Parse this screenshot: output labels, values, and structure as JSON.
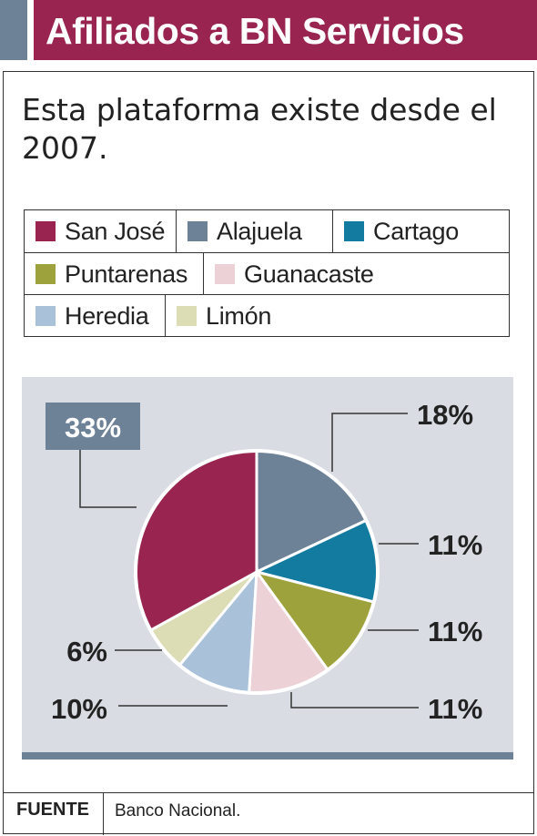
{
  "header": {
    "title": "Afiliados a BN Servicios"
  },
  "subtitle": "Esta plataforma existe desde el 2007.",
  "chart_data": {
    "type": "pie",
    "categories": [
      "San José",
      "Alajuela",
      "Cartago",
      "Puntarenas",
      "Guanacaste",
      "Heredia",
      "Limón"
    ],
    "values": [
      33,
      18,
      11,
      11,
      11,
      10,
      6
    ],
    "value_labels": [
      "33%",
      "18%",
      "11%",
      "11%",
      "11%",
      "10%",
      "6%"
    ],
    "colors": [
      "#98244f",
      "#6d8296",
      "#137aa0",
      "#9ea23c",
      "#ecd1d6",
      "#a9c2da",
      "#dcdcb5"
    ],
    "legend_placement": "top"
  },
  "footer": {
    "label": "FUENTE",
    "source": "Banco Nacional."
  }
}
